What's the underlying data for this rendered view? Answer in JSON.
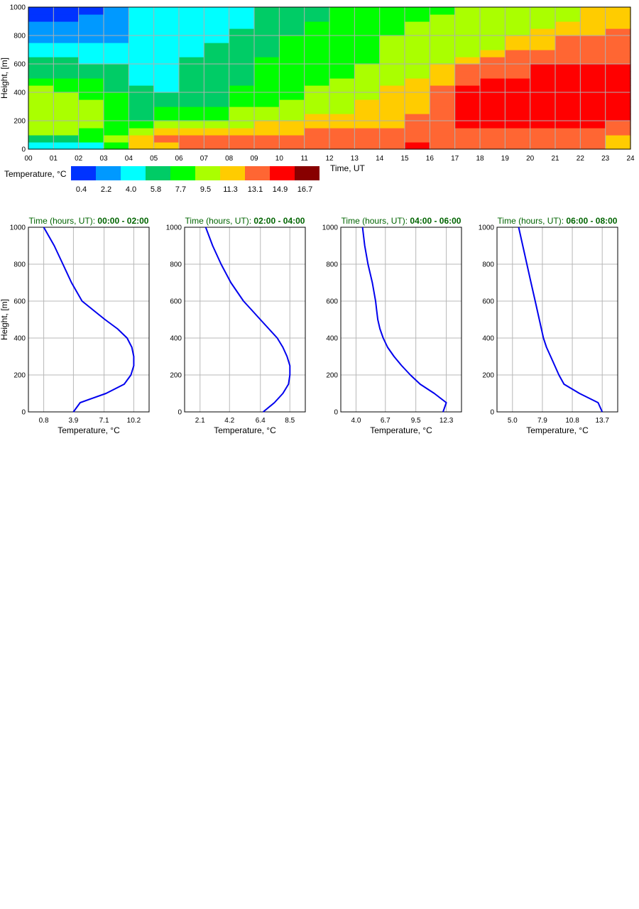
{
  "heatmap": {
    "y_label": "Height, [m]",
    "x_label": "Time, UT",
    "x_ticks": [
      "00",
      "01",
      "02",
      "03",
      "04",
      "05",
      "06",
      "07",
      "08",
      "09",
      "10",
      "11",
      "12",
      "13",
      "14",
      "15",
      "16",
      "17",
      "18",
      "19",
      "20",
      "21",
      "22",
      "23",
      "24"
    ],
    "y_ticks": [
      "0",
      "200",
      "400",
      "600",
      "800",
      "1000"
    ],
    "legend_title": "Temperature, °C",
    "legend_values": [
      "0.4",
      "2.2",
      "4.0",
      "5.8",
      "7.7",
      "9.5",
      "11.3",
      "13.1",
      "14.9",
      "16.7"
    ],
    "palette": [
      "#0033ff",
      "#0099ff",
      "#00ffff",
      "#00cc66",
      "#00ff00",
      "#aaff00",
      "#ffcc00",
      "#ff6633",
      "#ff0000",
      "#880000"
    ]
  },
  "chart_data": [
    {
      "type": "heatmap",
      "xlabel": "Time, UT",
      "ylabel": "Height, [m]",
      "xlim": [
        0,
        24
      ],
      "ylim": [
        0,
        1000
      ],
      "color_scale_title": "Temperature, °C",
      "color_bins": [
        0.4,
        2.2,
        4.0,
        5.8,
        7.7,
        9.5,
        11.3,
        13.1,
        14.9,
        16.7
      ],
      "heights": [
        25,
        75,
        125,
        175,
        225,
        275,
        325,
        375,
        425,
        475,
        525,
        575,
        625,
        675,
        725,
        775,
        825,
        875,
        925,
        975
      ],
      "times": [
        0.5,
        1.5,
        2.5,
        3.5,
        4.5,
        5.5,
        6.5,
        7.5,
        8.5,
        9.5,
        10.5,
        11.5,
        12.5,
        13.5,
        14.5,
        15.5,
        16.5,
        17.5,
        18.5,
        19.5,
        20.5,
        21.5,
        22.5,
        23.5
      ],
      "bin_index_rows_bottom_to_top": [
        [
          2,
          2,
          2,
          4,
          6,
          6,
          7,
          7,
          7,
          7,
          7,
          7,
          7,
          7,
          7,
          8,
          7,
          7,
          7,
          7,
          7,
          7,
          7,
          6
        ],
        [
          3,
          3,
          4,
          5,
          6,
          7,
          7,
          7,
          7,
          7,
          7,
          7,
          7,
          7,
          7,
          7,
          7,
          7,
          7,
          7,
          7,
          7,
          7,
          6
        ],
        [
          5,
          5,
          4,
          4,
          5,
          6,
          6,
          6,
          6,
          6,
          6,
          7,
          7,
          7,
          7,
          7,
          7,
          7,
          7,
          7,
          7,
          7,
          7,
          7
        ],
        [
          5,
          5,
          5,
          4,
          4,
          5,
          5,
          5,
          5,
          6,
          6,
          6,
          6,
          6,
          6,
          7,
          7,
          8,
          8,
          8,
          8,
          8,
          8,
          7
        ],
        [
          5,
          5,
          5,
          4,
          3,
          4,
          4,
          4,
          5,
          5,
          5,
          6,
          6,
          6,
          6,
          7,
          7,
          8,
          8,
          8,
          8,
          8,
          8,
          8
        ],
        [
          5,
          5,
          5,
          4,
          3,
          4,
          4,
          4,
          5,
          5,
          5,
          5,
          5,
          6,
          6,
          6,
          7,
          8,
          8,
          8,
          8,
          8,
          8,
          8
        ],
        [
          5,
          5,
          5,
          4,
          3,
          3,
          3,
          3,
          4,
          4,
          5,
          5,
          5,
          6,
          6,
          6,
          7,
          8,
          8,
          8,
          8,
          8,
          8,
          8
        ],
        [
          5,
          5,
          4,
          4,
          3,
          3,
          3,
          3,
          4,
          4,
          4,
          5,
          5,
          5,
          6,
          6,
          7,
          8,
          8,
          8,
          8,
          8,
          8,
          8
        ],
        [
          5,
          4,
          4,
          3,
          3,
          2,
          3,
          3,
          4,
          4,
          4,
          5,
          5,
          5,
          6,
          6,
          7,
          8,
          8,
          8,
          8,
          8,
          8,
          8
        ],
        [
          4,
          4,
          4,
          3,
          2,
          2,
          3,
          3,
          3,
          4,
          4,
          4,
          5,
          5,
          5,
          6,
          6,
          7,
          8,
          8,
          8,
          8,
          8,
          8
        ],
        [
          3,
          3,
          3,
          3,
          2,
          2,
          3,
          3,
          3,
          4,
          4,
          4,
          4,
          5,
          5,
          5,
          6,
          7,
          7,
          7,
          8,
          8,
          8,
          8
        ],
        [
          3,
          3,
          3,
          3,
          2,
          2,
          3,
          3,
          3,
          4,
          4,
          4,
          4,
          5,
          5,
          5,
          6,
          7,
          7,
          7,
          8,
          8,
          8,
          8
        ],
        [
          3,
          3,
          2,
          2,
          2,
          2,
          3,
          3,
          3,
          4,
          4,
          4,
          4,
          4,
          5,
          5,
          5,
          6,
          7,
          7,
          7,
          7,
          7,
          7
        ],
        [
          2,
          2,
          2,
          2,
          2,
          2,
          2,
          3,
          3,
          3,
          4,
          4,
          4,
          4,
          5,
          5,
          5,
          5,
          6,
          7,
          7,
          7,
          7,
          7
        ],
        [
          2,
          2,
          2,
          2,
          2,
          2,
          2,
          3,
          3,
          3,
          4,
          4,
          4,
          4,
          5,
          5,
          5,
          5,
          5,
          6,
          6,
          7,
          7,
          7
        ],
        [
          1,
          1,
          1,
          1,
          2,
          2,
          2,
          2,
          3,
          3,
          4,
          4,
          4,
          4,
          5,
          5,
          5,
          5,
          5,
          6,
          6,
          7,
          7,
          7
        ],
        [
          1,
          1,
          1,
          1,
          2,
          2,
          2,
          2,
          3,
          3,
          3,
          4,
          4,
          4,
          4,
          5,
          5,
          5,
          5,
          5,
          6,
          6,
          6,
          7
        ],
        [
          1,
          1,
          1,
          1,
          2,
          2,
          2,
          2,
          2,
          3,
          3,
          4,
          4,
          4,
          4,
          5,
          5,
          5,
          5,
          5,
          5,
          6,
          6,
          6
        ],
        [
          0,
          0,
          1,
          1,
          2,
          2,
          2,
          2,
          2,
          3,
          3,
          3,
          4,
          4,
          4,
          4,
          5,
          5,
          5,
          5,
          5,
          5,
          6,
          6
        ],
        [
          0,
          0,
          0,
          1,
          2,
          2,
          2,
          2,
          2,
          3,
          3,
          3,
          4,
          4,
          4,
          4,
          4,
          5,
          5,
          5,
          5,
          5,
          6,
          6
        ]
      ]
    },
    {
      "type": "line",
      "title_prefix": "Time (hours, UT): ",
      "title_range": "00:00 - 02:00",
      "xlabel": "Temperature, °C",
      "ylabel": "Height, [m]",
      "x_ticks": [
        0.8,
        3.9,
        7.1,
        10.2
      ],
      "xlim": [
        -0.8,
        11.8
      ],
      "ylim": [
        0,
        1000
      ],
      "x": [
        3.9,
        4.6,
        7.3,
        9.2,
        9.9,
        10.2,
        10.2,
        10.0,
        9.5,
        8.5,
        7.2,
        6.0,
        4.8,
        3.7,
        2.8,
        1.9,
        0.8
      ],
      "y": [
        0,
        50,
        100,
        150,
        200,
        250,
        300,
        350,
        400,
        450,
        500,
        550,
        600,
        700,
        800,
        900,
        1000
      ]
    },
    {
      "type": "line",
      "title_prefix": "Time (hours, UT): ",
      "title_range": "02:00 - 04:00",
      "xlabel": "Temperature, °C",
      "ylabel": "Height, [m]",
      "x_ticks": [
        2.1,
        4.2,
        6.4,
        8.5
      ],
      "xlim": [
        1.0,
        9.6
      ],
      "ylim": [
        0,
        1000
      ],
      "x": [
        6.6,
        7.4,
        8.0,
        8.4,
        8.5,
        8.5,
        8.3,
        8.0,
        7.6,
        7.0,
        6.4,
        5.8,
        5.2,
        4.3,
        3.6,
        3.0,
        2.5
      ],
      "y": [
        0,
        50,
        100,
        150,
        200,
        250,
        300,
        350,
        400,
        450,
        500,
        550,
        600,
        700,
        800,
        900,
        1000
      ]
    },
    {
      "type": "line",
      "title_prefix": "Time (hours, UT): ",
      "title_range": "04:00 - 06:00",
      "xlabel": "Temperature, °C",
      "ylabel": "Height, [m]",
      "x_ticks": [
        4.0,
        6.7,
        9.5,
        12.3
      ],
      "xlim": [
        2.6,
        13.7
      ],
      "ylim": [
        0,
        1000
      ],
      "x": [
        12.0,
        12.3,
        11.2,
        9.9,
        9.0,
        8.2,
        7.5,
        6.9,
        6.5,
        6.2,
        6.0,
        5.9,
        5.8,
        5.5,
        5.1,
        4.8,
        4.6
      ],
      "y": [
        0,
        50,
        100,
        150,
        200,
        250,
        300,
        350,
        400,
        450,
        500,
        550,
        600,
        700,
        800,
        900,
        1000
      ]
    },
    {
      "type": "line",
      "title_prefix": "Time (hours, UT): ",
      "title_range": "06:00 - 08:00",
      "xlabel": "Temperature, °C",
      "ylabel": "Height, [m]",
      "x_ticks": [
        5.0,
        7.9,
        10.8,
        13.7
      ],
      "xlim": [
        3.5,
        15.2
      ],
      "ylim": [
        0,
        1000
      ],
      "x": [
        13.7,
        13.3,
        11.5,
        10.0,
        9.5,
        9.1,
        8.7,
        8.3,
        8.0,
        7.8,
        7.6,
        7.4,
        7.2,
        6.8,
        6.4,
        6.0,
        5.6
      ],
      "y": [
        0,
        50,
        100,
        150,
        200,
        250,
        300,
        350,
        400,
        450,
        500,
        550,
        600,
        700,
        800,
        900,
        1000
      ]
    }
  ]
}
